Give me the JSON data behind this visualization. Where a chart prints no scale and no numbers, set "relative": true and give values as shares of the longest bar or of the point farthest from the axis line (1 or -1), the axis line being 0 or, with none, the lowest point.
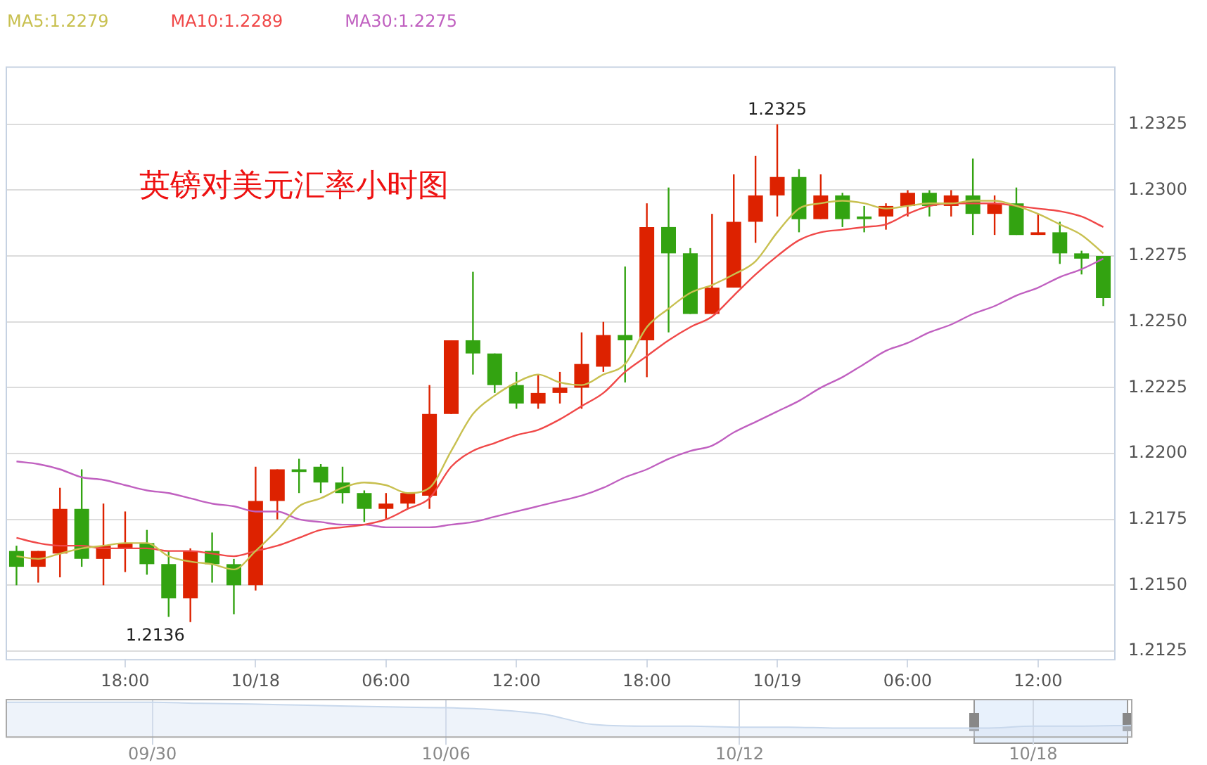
{
  "chart_data": [
    {
      "type": "candlestick",
      "title": "英镑对美元汇率小时图",
      "categories": [
        null,
        null,
        null,
        null,
        null,
        "18:00",
        null,
        null,
        null,
        null,
        null,
        "10/18",
        null,
        null,
        null,
        null,
        null,
        "06:00",
        null,
        null,
        null,
        null,
        null,
        "12:00",
        null,
        null,
        null,
        null,
        null,
        "18:00",
        null,
        null,
        null,
        null,
        null,
        "10/19",
        null,
        null,
        null,
        null,
        null,
        "06:00",
        null,
        null,
        null,
        null,
        null,
        "12:00",
        null,
        null,
        null
      ],
      "ohlc": [
        [
          1.2163,
          1.2165,
          1.215,
          1.2157
        ],
        [
          1.2157,
          1.2163,
          1.2151,
          1.2163
        ],
        [
          1.2162,
          1.2187,
          1.2153,
          1.2179
        ],
        [
          1.2179,
          1.2194,
          1.2157,
          1.216
        ],
        [
          1.216,
          1.2181,
          1.215,
          1.2165
        ],
        [
          1.2164,
          1.2178,
          1.2155,
          1.2166
        ],
        [
          1.2166,
          1.2171,
          1.2154,
          1.2158
        ],
        [
          1.2158,
          1.2163,
          1.2138,
          1.2145
        ],
        [
          1.2145,
          1.2164,
          1.2136,
          1.2163
        ],
        [
          1.2163,
          1.217,
          1.2151,
          1.2158
        ],
        [
          1.2158,
          1.216,
          1.2139,
          1.215
        ],
        [
          1.215,
          1.2195,
          1.2148,
          1.2182
        ],
        [
          1.2182,
          1.2194,
          1.2175,
          1.2194
        ],
        [
          1.2194,
          1.2198,
          1.2185,
          1.2193
        ],
        [
          1.2195,
          1.2196,
          1.2185,
          1.2189
        ],
        [
          1.2189,
          1.2195,
          1.2181,
          1.2185
        ],
        [
          1.2185,
          1.2186,
          1.2174,
          1.2179
        ],
        [
          1.2179,
          1.2185,
          1.2175,
          1.2181
        ],
        [
          1.2181,
          1.2185,
          1.2179,
          1.2185
        ],
        [
          1.2184,
          1.2226,
          1.2179,
          1.2215
        ],
        [
          1.2215,
          1.2243,
          1.2215,
          1.2243
        ],
        [
          1.2243,
          1.2269,
          1.223,
          1.2238
        ],
        [
          1.2238,
          1.2238,
          1.2223,
          1.2226
        ],
        [
          1.2226,
          1.2231,
          1.2217,
          1.2219
        ],
        [
          1.2219,
          1.223,
          1.2217,
          1.2223
        ],
        [
          1.2223,
          1.2231,
          1.2219,
          1.2225
        ],
        [
          1.2225,
          1.2246,
          1.2217,
          1.2234
        ],
        [
          1.2233,
          1.225,
          1.2231,
          1.2245
        ],
        [
          1.2245,
          1.2271,
          1.2227,
          1.2243
        ],
        [
          1.2243,
          1.2295,
          1.2229,
          1.2286
        ],
        [
          1.2286,
          1.2301,
          1.2246,
          1.2276
        ],
        [
          1.2276,
          1.2278,
          1.2253,
          1.2253
        ],
        [
          1.2253,
          1.2291,
          1.2253,
          1.2263
        ],
        [
          1.2263,
          1.2306,
          1.2263,
          1.2288
        ],
        [
          1.2288,
          1.2313,
          1.228,
          1.2298
        ],
        [
          1.2298,
          1.2325,
          1.229,
          1.2305
        ],
        [
          1.2305,
          1.2308,
          1.2284,
          1.2289
        ],
        [
          1.2289,
          1.2306,
          1.2289,
          1.2298
        ],
        [
          1.2298,
          1.2299,
          1.2286,
          1.2289
        ],
        [
          1.229,
          1.2294,
          1.2284,
          1.2289
        ],
        [
          1.229,
          1.2295,
          1.2285,
          1.2294
        ],
        [
          1.2294,
          1.23,
          1.229,
          1.2299
        ],
        [
          1.2299,
          1.23,
          1.229,
          1.2294
        ],
        [
          1.2294,
          1.23,
          1.229,
          1.2298
        ],
        [
          1.2298,
          1.2312,
          1.2283,
          1.2291
        ],
        [
          1.2291,
          1.2298,
          1.2283,
          1.2295
        ],
        [
          1.2295,
          1.2301,
          1.2283,
          1.2283
        ],
        [
          1.2283,
          1.2291,
          1.2283,
          1.2284
        ],
        [
          1.2284,
          1.2288,
          1.2272,
          1.2276
        ],
        [
          1.2276,
          1.2277,
          1.2268,
          1.2274
        ],
        [
          1.2275,
          1.2275,
          1.2256,
          1.2259
        ]
      ],
      "colors": [
        "#33a311",
        "#dd2200",
        "#dd2200",
        "#33a311",
        "#dd2200",
        "#dd2200",
        "#33a311",
        "#33a311",
        "#dd2200",
        "#33a311",
        "#33a311",
        "#dd2200",
        "#dd2200",
        "#33a311",
        "#33a311",
        "#33a311",
        "#33a311",
        "#dd2200",
        "#dd2200",
        "#dd2200",
        "#dd2200",
        "#33a311",
        "#33a311",
        "#33a311",
        "#dd2200",
        "#dd2200",
        "#dd2200",
        "#dd2200",
        "#33a311",
        "#dd2200",
        "#33a311",
        "#33a311",
        "#dd2200",
        "#dd2200",
        "#dd2200",
        "#dd2200",
        "#33a311",
        "#dd2200",
        "#33a311",
        "#33a311",
        "#dd2200",
        "#dd2200",
        "#33a311",
        "#dd2200",
        "#33a311",
        "#dd2200",
        "#33a311",
        "#dd2200",
        "#33a311",
        "#33a311",
        "#33a311"
      ],
      "series": [
        {
          "type": "line",
          "name": "MA5:1.2279",
          "color": "#c8c050",
          "values": [
            1.2161,
            1.216,
            1.2162,
            1.2164,
            1.2165,
            1.2166,
            1.2166,
            1.2161,
            1.2159,
            1.2158,
            1.2156,
            1.2163,
            1.2171,
            1.218,
            1.2183,
            1.2187,
            1.2189,
            1.2188,
            1.2185,
            1.2187,
            1.2201,
            1.2215,
            1.2222,
            1.2227,
            1.223,
            1.2227,
            1.2226,
            1.223,
            1.2234,
            1.2248,
            1.2255,
            1.2261,
            1.2264,
            1.2268,
            1.2273,
            1.2284,
            1.2293,
            1.2295,
            1.2296,
            1.2295,
            1.2293,
            1.2294,
            1.2295,
            1.2295,
            1.2296,
            1.2296,
            1.2294,
            1.2291,
            1.2287,
            1.2283,
            1.2276
          ]
        },
        {
          "type": "line",
          "name": "MA10:1.2289",
          "color": "#f04848",
          "values": [
            1.2168,
            1.2166,
            1.2165,
            1.2165,
            1.2164,
            1.2164,
            1.2164,
            1.2163,
            1.2163,
            1.2162,
            1.2161,
            1.2163,
            1.2165,
            1.2168,
            1.2171,
            1.2172,
            1.2173,
            1.2175,
            1.2179,
            1.2183,
            1.2195,
            1.2201,
            1.2204,
            1.2207,
            1.2209,
            1.2213,
            1.2218,
            1.2223,
            1.2231,
            1.2237,
            1.2243,
            1.2248,
            1.2252,
            1.226,
            1.2268,
            1.2275,
            1.2281,
            1.2284,
            1.2285,
            1.2286,
            1.2287,
            1.2291,
            1.2294,
            1.2295,
            1.2295,
            1.2295,
            1.2294,
            1.2293,
            1.2292,
            1.229,
            1.2286
          ]
        },
        {
          "type": "line",
          "name": "MA30:1.2275",
          "color": "#c060c0",
          "values": [
            1.2197,
            1.2196,
            1.2194,
            1.2191,
            1.219,
            1.2188,
            1.2186,
            1.2185,
            1.2183,
            1.2181,
            1.218,
            1.2178,
            1.2178,
            1.2175,
            1.2174,
            1.2173,
            1.2173,
            1.2172,
            1.2172,
            1.2172,
            1.2173,
            1.2174,
            1.2176,
            1.2178,
            1.218,
            1.2182,
            1.2184,
            1.2187,
            1.2191,
            1.2194,
            1.2198,
            1.2201,
            1.2203,
            1.2208,
            1.2212,
            1.2216,
            1.222,
            1.2225,
            1.2229,
            1.2234,
            1.2239,
            1.2242,
            1.2246,
            1.2249,
            1.2253,
            1.2256,
            1.226,
            1.2263,
            1.2267,
            1.227,
            1.2274
          ]
        }
      ],
      "ylim": [
        1.2122,
        1.2347
      ],
      "yticks": [
        1.2125,
        {
          "value": 1.215,
          "label": "1.2150"
        },
        1.2175,
        {
          "value": 1.22,
          "label": "1.2200"
        },
        1.2225,
        {
          "value": 1.225,
          "label": "1.2250"
        },
        1.2275,
        {
          "value": 1.23,
          "label": "1.2300"
        },
        1.2325
      ],
      "grid": "y",
      "legend": "top left",
      "marker": "none",
      "annotations": [
        "1.2325",
        "1.2136"
      ]
    },
    {
      "type": "area",
      "relative": true,
      "color": "#d5e2f2",
      "categories": [
        null,
        null,
        null,
        "09/30",
        null,
        null,
        null,
        null,
        null,
        "10/06",
        null,
        null,
        null,
        null,
        null,
        "10/12",
        null,
        null,
        null,
        null,
        null,
        "10/18",
        null,
        null
      ],
      "values": [
        1,
        1,
        1,
        1,
        0.97,
        0.95,
        0.92,
        0.89,
        0.86,
        0.84,
        0.78,
        0.65,
        0.35,
        0.3,
        0.3,
        0.27,
        0.27,
        0.24,
        0.24,
        0.24,
        0.24,
        0.3,
        0.3,
        0.32
      ],
      "grid": "x"
    }
  ]
}
